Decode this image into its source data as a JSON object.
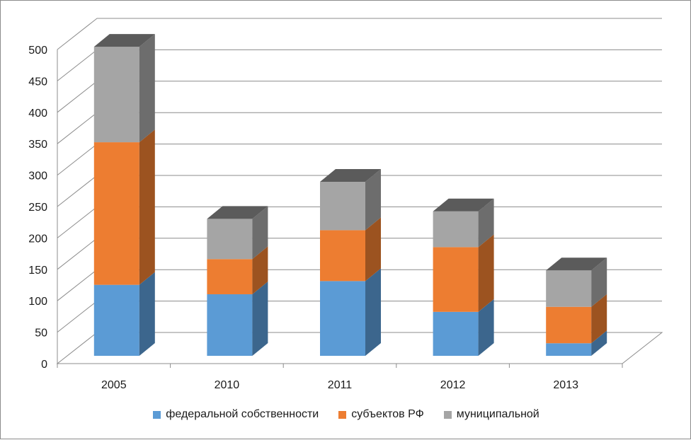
{
  "chart_data": {
    "type": "bar",
    "stacked": true,
    "three_d": true,
    "categories": [
      "2005",
      "2010",
      "2011",
      "2012",
      "2013"
    ],
    "series": [
      {
        "name": "федеральной собственности",
        "color": "#5b9bd5",
        "values": [
          113,
          98,
          119,
          70,
          20
        ]
      },
      {
        "name": "субъектов РФ",
        "color": "#ed7d31",
        "values": [
          227,
          56,
          81,
          103,
          58
        ]
      },
      {
        "name": "муниципальной",
        "color": "#a5a5a5",
        "values": [
          152,
          64,
          77,
          57,
          58
        ]
      }
    ],
    "yticks": [
      "0",
      "50",
      "100",
      "150",
      "200",
      "250",
      "300",
      "350",
      "400",
      "450",
      "500"
    ],
    "ylim": [
      0,
      500
    ],
    "grid": true,
    "legend_position": "bottom"
  }
}
